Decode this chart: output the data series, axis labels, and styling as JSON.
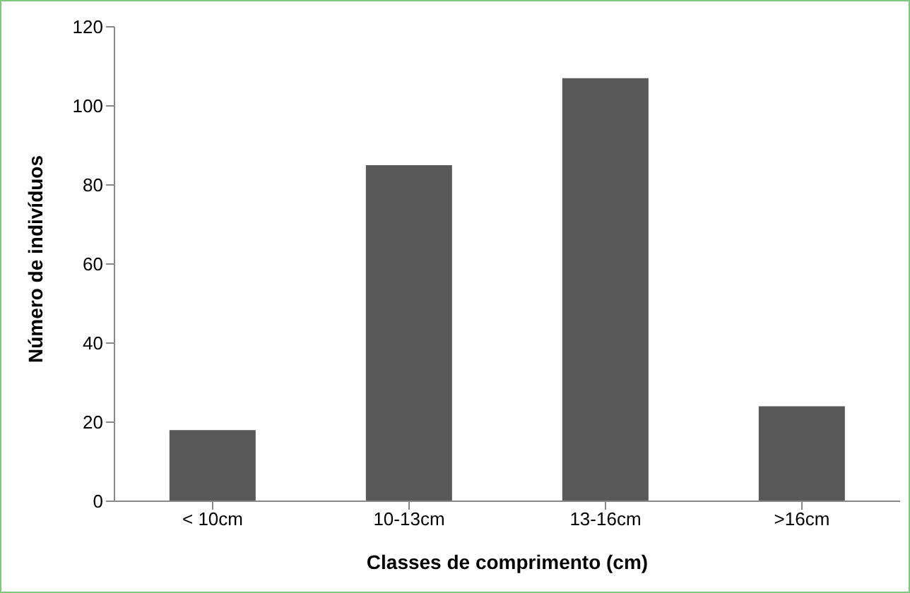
{
  "chart_data": {
    "type": "bar",
    "xlabel": "Classes de comprimento (cm)",
    "ylabel": "Número de indivíduos",
    "categories": [
      "< 10cm",
      "10-13cm",
      "13-16cm",
      ">16cm"
    ],
    "values": [
      18,
      85,
      107,
      24
    ],
    "color": "#595959",
    "ylim": [
      0,
      120
    ],
    "yticks": [
      0,
      20,
      40,
      60,
      80,
      100,
      120
    ],
    "grid": false,
    "legend": false
  }
}
